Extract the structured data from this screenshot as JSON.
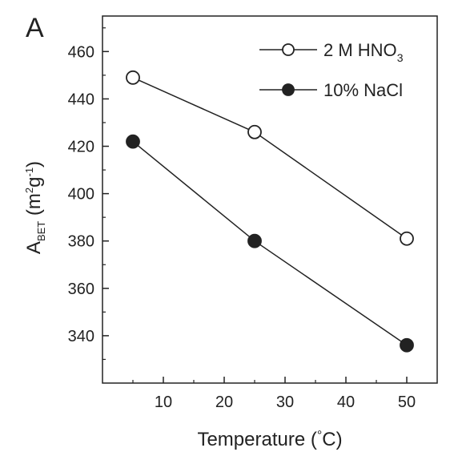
{
  "chart_data": {
    "type": "line",
    "panel_label": "A",
    "x": [
      5,
      25,
      50
    ],
    "xlim": [
      0,
      55
    ],
    "ylim": [
      320,
      475
    ],
    "x_ticks": [
      10,
      20,
      30,
      40,
      50
    ],
    "y_ticks": [
      340,
      360,
      380,
      400,
      420,
      440,
      460
    ],
    "xlabel": {
      "main": "Temperature (",
      "symbol": "°",
      "unit": "C)"
    },
    "ylabel": {
      "main": "A",
      "sub": "BET",
      "open": " (m",
      "sup1": "2",
      "mid": "g",
      "sup2": "-1",
      "close": ")"
    },
    "legend_position": "top-right",
    "series": [
      {
        "name": "2 M HNO3",
        "name_parts": {
          "main": "2 M HNO",
          "sub": "3"
        },
        "marker": "open-circle",
        "values": [
          449,
          426,
          381
        ]
      },
      {
        "name": "10% NaCl",
        "name_parts": {
          "main": "10% NaCl",
          "sub": ""
        },
        "marker": "filled-circle",
        "values": [
          422,
          380,
          336
        ]
      }
    ],
    "grid": false,
    "colors": {
      "ink": "#222222",
      "background": "#ffffff"
    }
  }
}
